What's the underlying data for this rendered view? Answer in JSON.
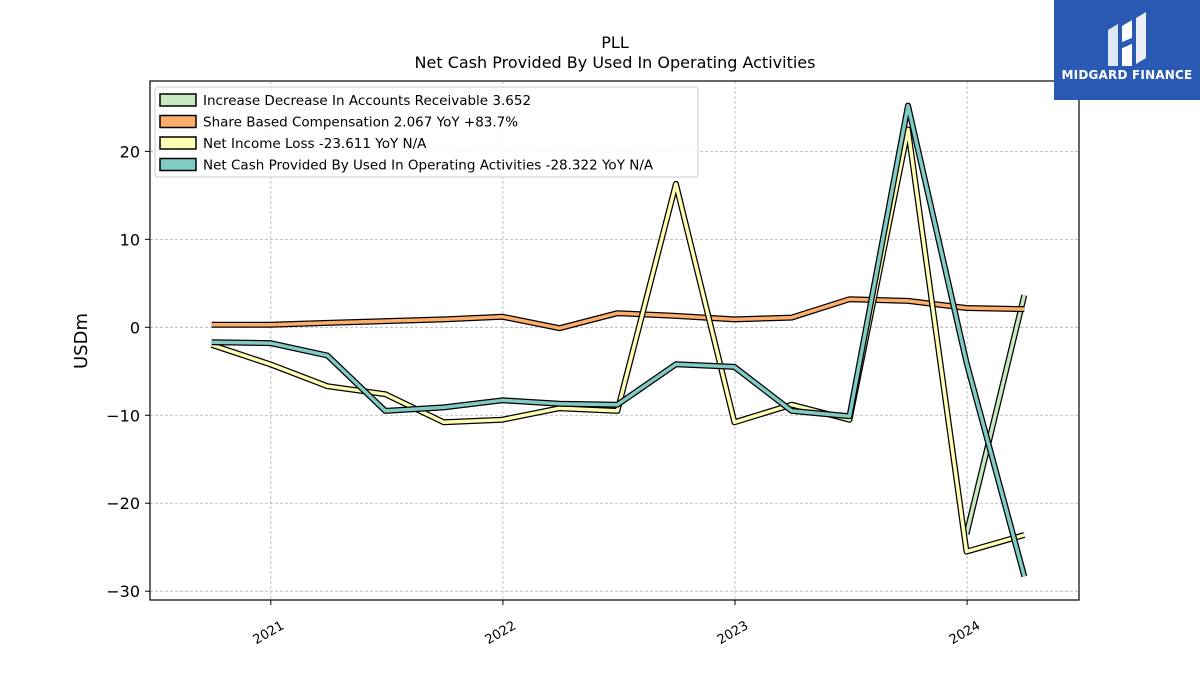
{
  "brand": {
    "name": "MIDGARD FINANCE",
    "logo_icon": "midgard-logo-icon",
    "background": "#2a5ab3"
  },
  "chart_data": {
    "type": "line",
    "title": "PLL",
    "subtitle": "Net Cash Provided By Used In Operating Activities",
    "xlabel": "",
    "ylabel": "USDm",
    "ylim": [
      -31,
      28
    ],
    "xlim": [
      "2020-06-25",
      "2024-06-25"
    ],
    "yticks": [
      -30,
      -20,
      -10,
      0,
      10,
      20
    ],
    "ytick_labels": [
      "−30",
      "−20",
      "−10",
      "0",
      "10",
      "20"
    ],
    "xticks": [
      "2021-01-01",
      "2022-01-01",
      "2023-01-01",
      "2024-01-01"
    ],
    "xtick_labels": [
      "2021",
      "2022",
      "2023",
      "2024"
    ],
    "grid": true,
    "legend_position": "top-left",
    "x": [
      "2020-09-30",
      "2020-12-31",
      "2021-03-31",
      "2021-06-30",
      "2021-09-30",
      "2021-12-31",
      "2022-03-31",
      "2022-06-30",
      "2022-09-30",
      "2022-12-31",
      "2023-03-31",
      "2023-06-30",
      "2023-09-30",
      "2023-12-31",
      "2024-03-31"
    ],
    "series": [
      {
        "name": "Increase Decrease In Accounts Receivable",
        "legend_label": "Increase Decrease In Accounts Receivable  3.652",
        "color": "#c7e9c0",
        "values": [
          null,
          null,
          null,
          null,
          null,
          null,
          null,
          null,
          null,
          null,
          null,
          null,
          null,
          -23.5,
          3.652
        ]
      },
      {
        "name": "Share Based Compensation",
        "legend_label": "Share Based Compensation  2.067 YoY +83.7%",
        "color": "#fdae6b",
        "values": [
          0.3,
          0.3,
          0.5,
          0.7,
          0.9,
          1.2,
          -0.1,
          1.6,
          1.3,
          0.9,
          1.1,
          3.2,
          3.0,
          2.2,
          2.067
        ]
      },
      {
        "name": "Net Income Loss",
        "legend_label": "Net Income Loss  -23.611 YoY N/A",
        "color": "#ffffb3",
        "values": [
          -2.0,
          -4.2,
          -6.7,
          -7.6,
          -10.8,
          -10.5,
          -9.2,
          -9.5,
          16.3,
          -10.8,
          -8.8,
          -10.5,
          22.5,
          -25.5,
          -23.611
        ]
      },
      {
        "name": "Net Cash Provided By Used In Operating Activities",
        "legend_label": "Net Cash Provided By Used In Operating Activities  -28.322 YoY N/A",
        "color": "#80cbc4",
        "values": [
          -1.7,
          -1.8,
          -3.2,
          -9.5,
          -9.1,
          -8.3,
          -8.7,
          -8.8,
          -4.2,
          -4.5,
          -9.5,
          -10.1,
          25.2,
          -4.0,
          -28.322
        ]
      }
    ]
  }
}
